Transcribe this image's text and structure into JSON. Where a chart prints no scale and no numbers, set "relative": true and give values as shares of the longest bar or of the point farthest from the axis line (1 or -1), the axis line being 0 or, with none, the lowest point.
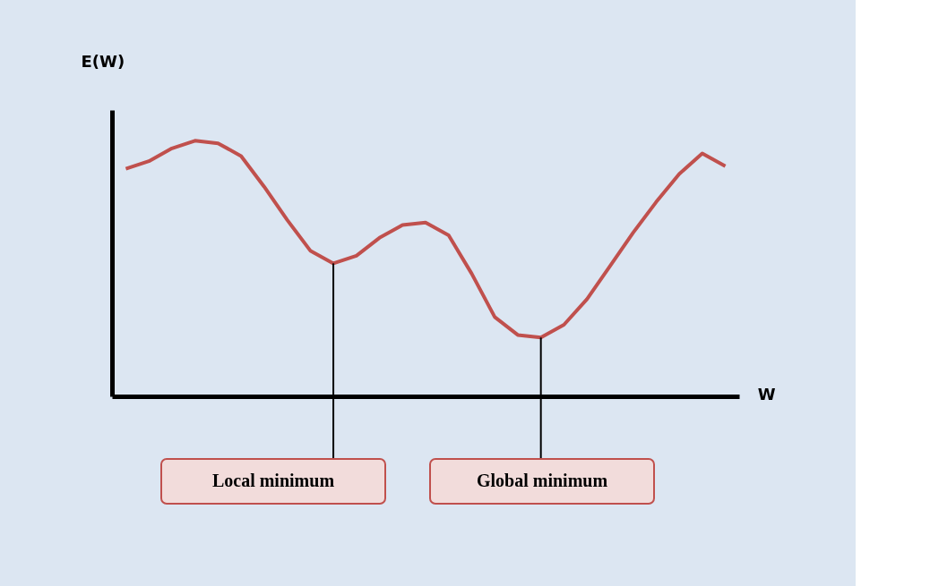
{
  "chart_data": {
    "type": "line",
    "relative": true,
    "xlabel": "W",
    "ylabel": "E(W)",
    "color": "#c0504d",
    "marker": "none",
    "grid": false,
    "tick_labels": false,
    "categories": [
      null,
      null,
      null,
      null,
      null,
      null,
      null,
      null,
      null,
      null,
      null,
      null,
      null,
      null,
      null,
      null,
      null,
      null,
      null,
      null,
      null,
      null,
      null,
      null,
      null,
      null,
      null
    ],
    "values": [
      0.89,
      0.92,
      0.97,
      1,
      0.99,
      0.94,
      0.82,
      0.69,
      0.57,
      0.52,
      0.55,
      0.62,
      0.67,
      0.68,
      0.63,
      0.48,
      0.31,
      0.24,
      0.23,
      0.28,
      0.38,
      0.51,
      0.64,
      0.76,
      0.87,
      0.95,
      0.9
    ],
    "annotations": [
      "Local minimum",
      "Global minimum"
    ]
  }
}
